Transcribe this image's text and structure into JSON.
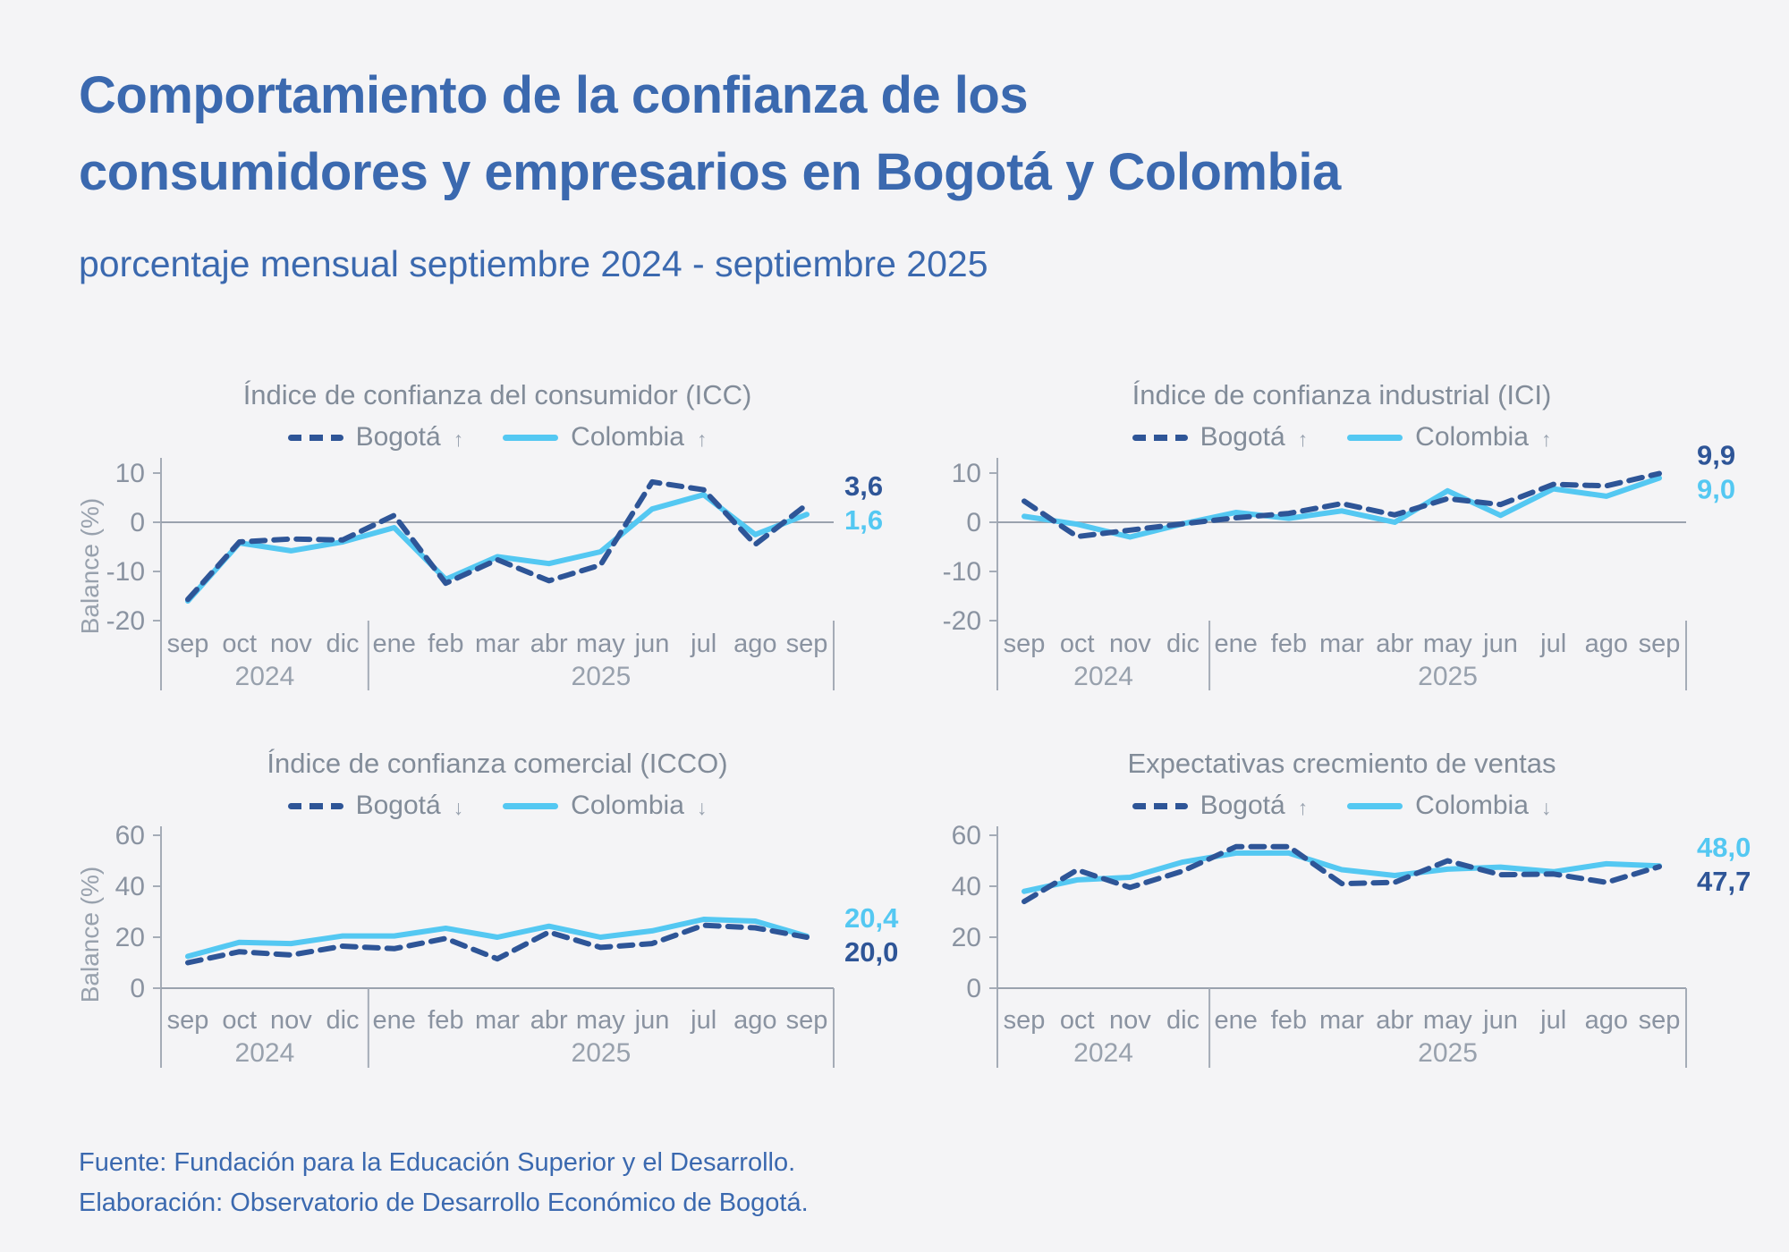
{
  "page": {
    "title_line1": "Comportamiento de la confianza de los",
    "title_line2": "consumidores y empresarios en Bogotá y Colombia",
    "subtitle": "porcentaje mensual septiembre 2024 - septiembre 2025",
    "footer_line1": "Fuente: Fundación para la Educación Superior y el Desarrollo.",
    "footer_line2": "Elaboración: Observatorio de Desarrollo Económico de Bogotá."
  },
  "colors": {
    "bogota": "#2e5597",
    "colombia": "#54c8f2",
    "title_blue": "#3b69af",
    "gray_text": "#828c99",
    "axis_gray": "#a5acb7",
    "background": "#f4f4f6"
  },
  "y_axis_title": "Balance (%)",
  "months": [
    "sep",
    "oct",
    "nov",
    "dic",
    "ene",
    "feb",
    "mar",
    "abr",
    "may",
    "jun",
    "jul",
    "ago",
    "sep"
  ],
  "year_groups": [
    {
      "label": "2024",
      "months": 4
    },
    {
      "label": "2025",
      "months": 9
    }
  ],
  "chart_data": [
    {
      "type": "line",
      "title": "Índice de confianza del consumidor (ICC)",
      "categories": [
        "sep",
        "oct",
        "nov",
        "dic",
        "ene",
        "feb",
        "mar",
        "abr",
        "may",
        "jun",
        "jul",
        "ago",
        "sep"
      ],
      "ylabel": "Balance (%)",
      "yticks": [
        10,
        0,
        -10,
        -20
      ],
      "ylim": [
        -20,
        10
      ],
      "zero_line": true,
      "legend_position": "top",
      "series": [
        {
          "name": "Bogotá",
          "trend_arrow": "↑",
          "dashed": true,
          "color": "#2e5597",
          "values": [
            -15.7,
            -4.0,
            -3.4,
            -3.6,
            1.4,
            -12.4,
            -7.6,
            -11.9,
            -8.7,
            8.2,
            6.6,
            -4.5,
            3.6
          ],
          "end_label": "3,6"
        },
        {
          "name": "Colombia",
          "trend_arrow": "↑",
          "dashed": false,
          "color": "#54c8f2",
          "values": [
            -16.0,
            -4.2,
            -5.8,
            -4.0,
            -1.1,
            -11.6,
            -7.0,
            -8.4,
            -6.0,
            2.7,
            5.6,
            -2.5,
            1.6
          ],
          "end_label": "1,6"
        }
      ]
    },
    {
      "type": "line",
      "title": "Índice de confianza industrial (ICI)",
      "categories": [
        "sep",
        "oct",
        "nov",
        "dic",
        "ene",
        "feb",
        "mar",
        "abr",
        "may",
        "jun",
        "jul",
        "ago",
        "sep"
      ],
      "ylabel": "",
      "yticks": [
        10,
        0,
        -10,
        -20
      ],
      "ylim": [
        -20,
        10
      ],
      "zero_line": true,
      "legend_position": "top",
      "series": [
        {
          "name": "Bogotá",
          "trend_arrow": "↑",
          "dashed": true,
          "color": "#2e5597",
          "values": [
            4.3,
            -2.9,
            -1.6,
            -0.3,
            0.9,
            1.8,
            3.8,
            1.5,
            4.8,
            3.6,
            7.7,
            7.4,
            9.9
          ],
          "end_label": "9,9"
        },
        {
          "name": "Colombia",
          "trend_arrow": "↑",
          "dashed": false,
          "color": "#54c8f2",
          "values": [
            1.2,
            -0.4,
            -3.0,
            -0.3,
            2.0,
            0.8,
            2.3,
            0.0,
            6.4,
            1.4,
            6.8,
            5.3,
            9.0
          ],
          "end_label": "9,0"
        }
      ]
    },
    {
      "type": "line",
      "title": "Índice de confianza comercial (ICCO)",
      "categories": [
        "sep",
        "oct",
        "nov",
        "dic",
        "ene",
        "feb",
        "mar",
        "abr",
        "may",
        "jun",
        "jul",
        "ago",
        "sep"
      ],
      "ylabel": "Balance (%)",
      "yticks": [
        60,
        40,
        20,
        0
      ],
      "ylim": [
        0,
        60
      ],
      "zero_line": false,
      "legend_position": "top",
      "series": [
        {
          "name": "Bogotá",
          "trend_arrow": "↓",
          "dashed": true,
          "color": "#2e5597",
          "values": [
            10.0,
            14.3,
            13.0,
            16.5,
            15.5,
            19.5,
            11.5,
            22.0,
            16.0,
            17.5,
            24.7,
            23.7,
            20.0
          ],
          "end_label": "20,0"
        },
        {
          "name": "Colombia",
          "trend_arrow": "↓",
          "dashed": false,
          "color": "#54c8f2",
          "values": [
            12.5,
            18.0,
            17.5,
            20.5,
            20.5,
            23.5,
            20.0,
            24.3,
            20.0,
            22.5,
            27.0,
            26.3,
            20.4
          ],
          "end_label": "20,4"
        }
      ]
    },
    {
      "type": "line",
      "title": "Expectativas crecmiento de ventas",
      "categories": [
        "sep",
        "oct",
        "nov",
        "dic",
        "ene",
        "feb",
        "mar",
        "abr",
        "may",
        "jun",
        "jul",
        "ago",
        "sep"
      ],
      "ylabel": "",
      "yticks": [
        60,
        40,
        20,
        0
      ],
      "ylim": [
        0,
        60
      ],
      "zero_line": false,
      "legend_position": "top",
      "series": [
        {
          "name": "Bogotá",
          "trend_arrow": "↑",
          "dashed": true,
          "color": "#2e5597",
          "values": [
            34.0,
            46.4,
            39.5,
            46.0,
            55.5,
            55.5,
            41.0,
            41.5,
            50.0,
            44.5,
            44.8,
            41.5,
            47.7
          ],
          "end_label": "47,7"
        },
        {
          "name": "Colombia",
          "trend_arrow": "↓",
          "dashed": false,
          "color": "#54c8f2",
          "values": [
            38.0,
            42.5,
            43.5,
            49.5,
            53.0,
            53.0,
            46.5,
            44.2,
            46.7,
            47.5,
            45.7,
            48.8,
            48.0
          ],
          "end_label": "48,0"
        }
      ]
    }
  ]
}
